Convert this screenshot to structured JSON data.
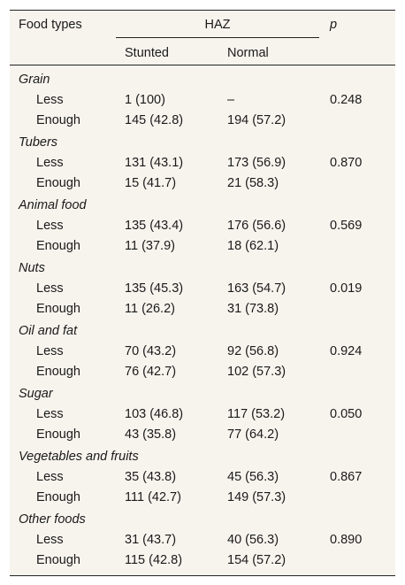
{
  "header": {
    "food_types": "Food types",
    "haz": "HAZ",
    "p": "p",
    "stunted": "Stunted",
    "normal": "Normal"
  },
  "groups": [
    {
      "name": "Grain",
      "rows": [
        {
          "label": "Less",
          "stunted": "1 (100)",
          "normal": "–",
          "p": "0.248"
        },
        {
          "label": "Enough",
          "stunted": "145 (42.8)",
          "normal": "194 (57.2)",
          "p": ""
        }
      ]
    },
    {
      "name": "Tubers",
      "rows": [
        {
          "label": "Less",
          "stunted": "131 (43.1)",
          "normal": "173 (56.9)",
          "p": "0.870"
        },
        {
          "label": "Enough",
          "stunted": "15 (41.7)",
          "normal": "21 (58.3)",
          "p": ""
        }
      ]
    },
    {
      "name": "Animal food",
      "rows": [
        {
          "label": "Less",
          "stunted": "135 (43.4)",
          "normal": "176 (56.6)",
          "p": "0.569"
        },
        {
          "label": "Enough",
          "stunted": "11 (37.9)",
          "normal": "18 (62.1)",
          "p": ""
        }
      ]
    },
    {
      "name": "Nuts",
      "rows": [
        {
          "label": "Less",
          "stunted": "135 (45.3)",
          "normal": "163 (54.7)",
          "p": "0.019"
        },
        {
          "label": "Enough",
          "stunted": "11 (26.2)",
          "normal": "31 (73.8)",
          "p": ""
        }
      ]
    },
    {
      "name": "Oil and fat",
      "rows": [
        {
          "label": "Less",
          "stunted": "70 (43.2)",
          "normal": "92 (56.8)",
          "p": "0.924"
        },
        {
          "label": "Enough",
          "stunted": "76 (42.7)",
          "normal": "102 (57.3)",
          "p": ""
        }
      ]
    },
    {
      "name": "Sugar",
      "rows": [
        {
          "label": "Less",
          "stunted": "103 (46.8)",
          "normal": "117 (53.2)",
          "p": "0.050"
        },
        {
          "label": "Enough",
          "stunted": "43 (35.8)",
          "normal": "77 (64.2)",
          "p": ""
        }
      ]
    },
    {
      "name": "Vegetables and fruits",
      "rows": [
        {
          "label": "Less",
          "stunted": "35 (43.8)",
          "normal": "45 (56.3)",
          "p": "0.867"
        },
        {
          "label": "Enough",
          "stunted": "111 (42.7)",
          "normal": "149 (57.3)",
          "p": ""
        }
      ]
    },
    {
      "name": "Other foods",
      "rows": [
        {
          "label": "Less",
          "stunted": "31 (43.7)",
          "normal": "40 (56.3)",
          "p": "0.890"
        },
        {
          "label": "Enough",
          "stunted": "115 (42.8)",
          "normal": "154 (57.2)",
          "p": ""
        }
      ]
    }
  ]
}
